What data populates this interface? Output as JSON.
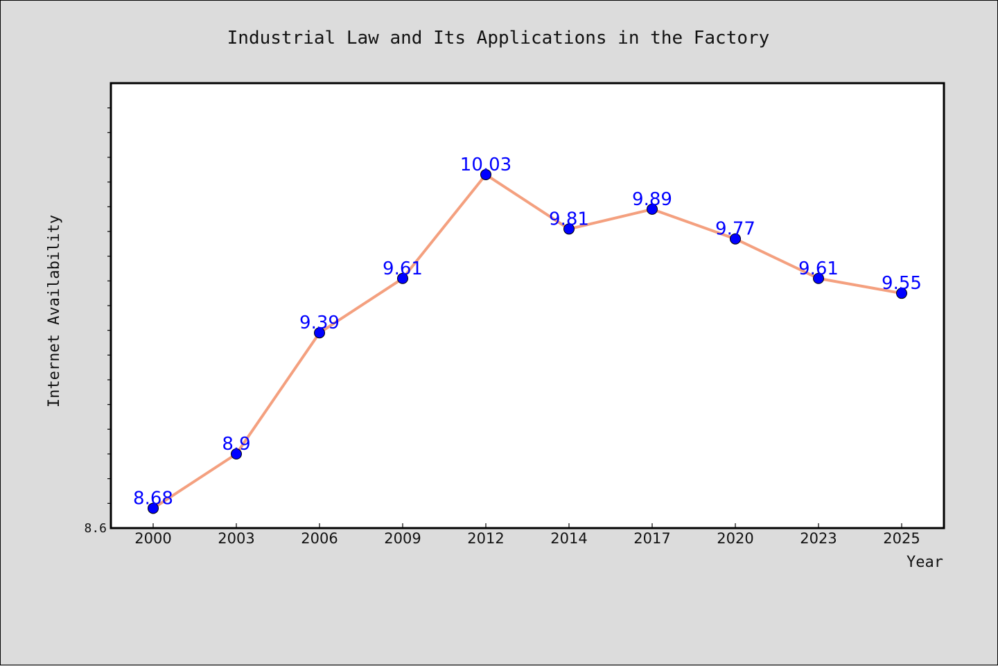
{
  "chart_data": {
    "type": "line",
    "title": "Industrial Law and Its Applications in the Factory",
    "xlabel": "Year",
    "ylabel": "Internet Availability",
    "categories": [
      "2000",
      "2003",
      "2006",
      "2009",
      "2012",
      "2014",
      "2017",
      "2020",
      "2023",
      "2025"
    ],
    "values": [
      8.68,
      8.9,
      9.39,
      9.61,
      10.03,
      9.81,
      9.89,
      9.77,
      9.61,
      9.55
    ],
    "data_labels": [
      "8.68",
      "8.9",
      "9.39",
      "9.61",
      "10.03",
      "9.81",
      "9.89",
      "9.77",
      "9.61",
      "9.55"
    ],
    "ylim": [
      8.6,
      10.4
    ],
    "y_tick_labels": [
      "8.6"
    ],
    "grid": false,
    "legend": "none",
    "colors": {
      "line": "#f4a07f",
      "marker": "#0000ff",
      "data_label": "#0000ff",
      "background": "#dcdcdc",
      "plot_background": "#ffffff"
    }
  }
}
